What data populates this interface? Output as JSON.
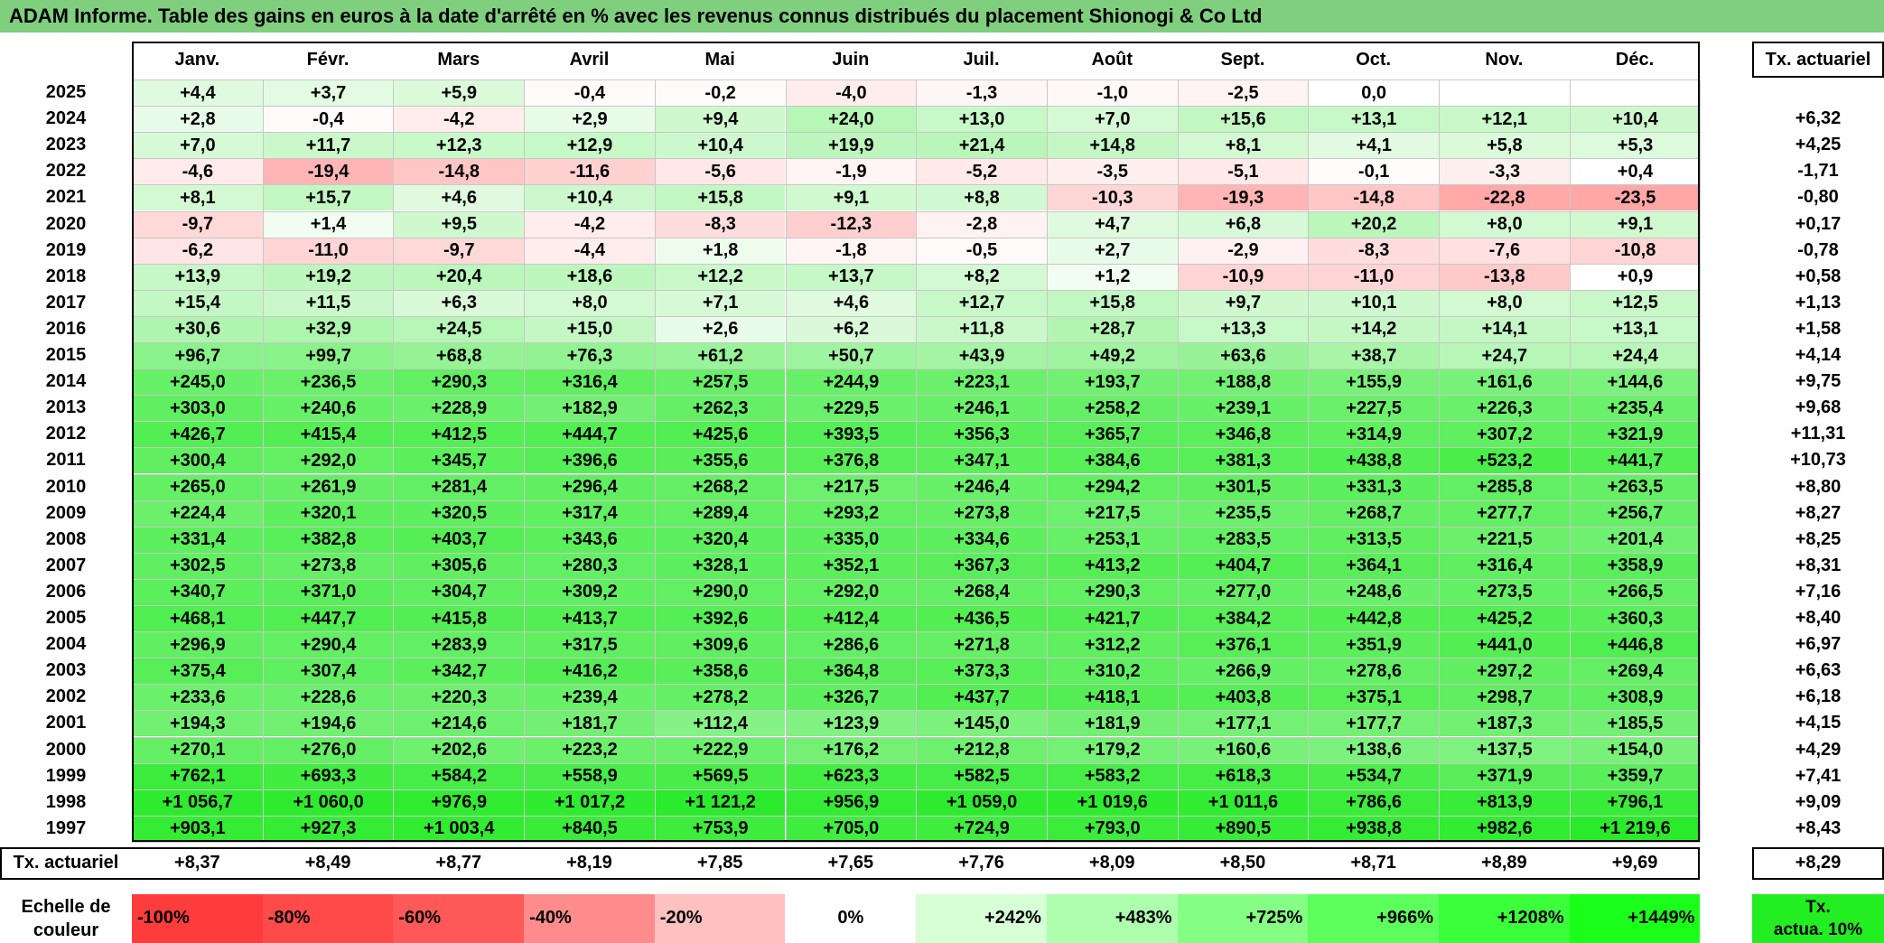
{
  "title": "ADAM Informe. Table des gains en euros à la date d'arrêté en % avec les revenus connus distribués du placement Shionogi & Co Ltd",
  "months": [
    "Janv.",
    "Févr.",
    "Mars",
    "Avril",
    "Mai",
    "Juin",
    "Juil.",
    "Août",
    "Sept.",
    "Oct.",
    "Nov.",
    "Déc."
  ],
  "rate_header": "Tx. actuariel",
  "rows": [
    {
      "year": "2025",
      "values": [
        "+4,4",
        "+3,7",
        "+5,9",
        "-0,4",
        "-0,2",
        "-4,0",
        "-1,3",
        "-1,0",
        "-2,5",
        "0,0",
        "",
        ""
      ],
      "rate": ""
    },
    {
      "year": "2024",
      "values": [
        "+2,8",
        "-0,4",
        "-4,2",
        "+2,9",
        "+9,4",
        "+24,0",
        "+13,0",
        "+7,0",
        "+15,6",
        "+13,1",
        "+12,1",
        "+10,4"
      ],
      "rate": "+6,32"
    },
    {
      "year": "2023",
      "values": [
        "+7,0",
        "+11,7",
        "+12,3",
        "+12,9",
        "+10,4",
        "+19,9",
        "+21,4",
        "+14,8",
        "+8,1",
        "+4,1",
        "+5,8",
        "+5,3"
      ],
      "rate": "+4,25"
    },
    {
      "year": "2022",
      "values": [
        "-4,6",
        "-19,4",
        "-14,8",
        "-11,6",
        "-5,6",
        "-1,9",
        "-5,2",
        "-3,5",
        "-5,1",
        "-0,1",
        "-3,3",
        "+0,4"
      ],
      "rate": "-1,71"
    },
    {
      "year": "2021",
      "values": [
        "+8,1",
        "+15,7",
        "+4,6",
        "+10,4",
        "+15,8",
        "+9,1",
        "+8,8",
        "-10,3",
        "-19,3",
        "-14,8",
        "-22,8",
        "-23,5"
      ],
      "rate": "-0,80"
    },
    {
      "year": "2020",
      "values": [
        "-9,7",
        "+1,4",
        "+9,5",
        "-4,2",
        "-8,3",
        "-12,3",
        "-2,8",
        "+4,7",
        "+6,8",
        "+20,2",
        "+8,0",
        "+9,1"
      ],
      "rate": "+0,17"
    },
    {
      "year": "2019",
      "values": [
        "-6,2",
        "-11,0",
        "-9,7",
        "-4,4",
        "+1,8",
        "-1,8",
        "-0,5",
        "+2,7",
        "-2,9",
        "-8,3",
        "-7,6",
        "-10,8"
      ],
      "rate": "-0,78"
    },
    {
      "year": "2018",
      "values": [
        "+13,9",
        "+19,2",
        "+20,4",
        "+18,6",
        "+12,2",
        "+13,7",
        "+8,2",
        "+1,2",
        "-10,9",
        "-11,0",
        "-13,8",
        "+0,9"
      ],
      "rate": "+0,58"
    },
    {
      "year": "2017",
      "values": [
        "+15,4",
        "+11,5",
        "+6,3",
        "+8,0",
        "+7,1",
        "+4,6",
        "+12,7",
        "+15,8",
        "+9,7",
        "+10,1",
        "+8,0",
        "+12,5"
      ],
      "rate": "+1,13"
    },
    {
      "year": "2016",
      "values": [
        "+30,6",
        "+32,9",
        "+24,5",
        "+15,0",
        "+2,6",
        "+6,2",
        "+11,8",
        "+28,7",
        "+13,3",
        "+14,2",
        "+14,1",
        "+13,1"
      ],
      "rate": "+1,58"
    },
    {
      "year": "2015",
      "values": [
        "+96,7",
        "+99,7",
        "+68,8",
        "+76,3",
        "+61,2",
        "+50,7",
        "+43,9",
        "+49,2",
        "+63,6",
        "+38,7",
        "+24,7",
        "+24,4"
      ],
      "rate": "+4,14"
    },
    {
      "year": "2014",
      "values": [
        "+245,0",
        "+236,5",
        "+290,3",
        "+316,4",
        "+257,5",
        "+244,9",
        "+223,1",
        "+193,7",
        "+188,8",
        "+155,9",
        "+161,6",
        "+144,6"
      ],
      "rate": "+9,75"
    },
    {
      "year": "2013",
      "values": [
        "+303,0",
        "+240,6",
        "+228,9",
        "+182,9",
        "+262,3",
        "+229,5",
        "+246,1",
        "+258,2",
        "+239,1",
        "+227,5",
        "+226,3",
        "+235,4"
      ],
      "rate": "+9,68"
    },
    {
      "year": "2012",
      "values": [
        "+426,7",
        "+415,4",
        "+412,5",
        "+444,7",
        "+425,6",
        "+393,5",
        "+356,3",
        "+365,7",
        "+346,8",
        "+314,9",
        "+307,2",
        "+321,9"
      ],
      "rate": "+11,31"
    },
    {
      "year": "2011",
      "values": [
        "+300,4",
        "+292,0",
        "+345,7",
        "+396,6",
        "+355,6",
        "+376,8",
        "+347,1",
        "+384,6",
        "+381,3",
        "+438,8",
        "+523,2",
        "+441,7"
      ],
      "rate": "+10,73"
    },
    {
      "year": "2010",
      "values": [
        "+265,0",
        "+261,9",
        "+281,4",
        "+296,4",
        "+268,2",
        "+217,5",
        "+246,4",
        "+294,2",
        "+301,5",
        "+331,3",
        "+285,8",
        "+263,5"
      ],
      "rate": "+8,80"
    },
    {
      "year": "2009",
      "values": [
        "+224,4",
        "+320,1",
        "+320,5",
        "+317,4",
        "+289,4",
        "+293,2",
        "+273,8",
        "+217,5",
        "+235,5",
        "+268,7",
        "+277,7",
        "+256,7"
      ],
      "rate": "+8,27"
    },
    {
      "year": "2008",
      "values": [
        "+331,4",
        "+382,8",
        "+403,7",
        "+343,6",
        "+320,4",
        "+335,0",
        "+334,6",
        "+253,1",
        "+283,5",
        "+313,5",
        "+221,5",
        "+201,4"
      ],
      "rate": "+8,25"
    },
    {
      "year": "2007",
      "values": [
        "+302,5",
        "+273,8",
        "+305,6",
        "+280,3",
        "+328,1",
        "+352,1",
        "+367,3",
        "+413,2",
        "+404,7",
        "+364,1",
        "+316,4",
        "+358,9"
      ],
      "rate": "+8,31"
    },
    {
      "year": "2006",
      "values": [
        "+340,7",
        "+371,0",
        "+304,7",
        "+309,2",
        "+290,0",
        "+292,0",
        "+268,4",
        "+290,3",
        "+277,0",
        "+248,6",
        "+273,5",
        "+266,5"
      ],
      "rate": "+7,16"
    },
    {
      "year": "2005",
      "values": [
        "+468,1",
        "+447,7",
        "+415,8",
        "+413,7",
        "+392,6",
        "+412,4",
        "+436,5",
        "+421,7",
        "+384,2",
        "+442,8",
        "+425,2",
        "+360,3"
      ],
      "rate": "+8,40"
    },
    {
      "year": "2004",
      "values": [
        "+296,9",
        "+290,4",
        "+283,9",
        "+317,5",
        "+309,6",
        "+286,6",
        "+271,8",
        "+312,2",
        "+376,1",
        "+351,9",
        "+441,0",
        "+446,8"
      ],
      "rate": "+6,97"
    },
    {
      "year": "2003",
      "values": [
        "+375,4",
        "+307,4",
        "+342,7",
        "+416,2",
        "+358,6",
        "+364,8",
        "+373,3",
        "+310,2",
        "+266,9",
        "+278,6",
        "+297,2",
        "+269,4"
      ],
      "rate": "+6,63"
    },
    {
      "year": "2002",
      "values": [
        "+233,6",
        "+228,6",
        "+220,3",
        "+239,4",
        "+278,2",
        "+326,7",
        "+437,7",
        "+418,1",
        "+403,8",
        "+375,1",
        "+298,7",
        "+308,9"
      ],
      "rate": "+6,18"
    },
    {
      "year": "2001",
      "values": [
        "+194,3",
        "+194,6",
        "+214,6",
        "+181,7",
        "+112,4",
        "+123,9",
        "+145,0",
        "+181,9",
        "+177,1",
        "+177,7",
        "+187,3",
        "+185,5"
      ],
      "rate": "+4,15"
    },
    {
      "year": "2000",
      "values": [
        "+270,1",
        "+276,0",
        "+202,6",
        "+223,2",
        "+222,9",
        "+176,2",
        "+212,8",
        "+179,2",
        "+160,6",
        "+138,6",
        "+137,5",
        "+154,0"
      ],
      "rate": "+4,29"
    },
    {
      "year": "1999",
      "values": [
        "+762,1",
        "+693,3",
        "+584,2",
        "+558,9",
        "+569,5",
        "+623,3",
        "+582,5",
        "+583,2",
        "+618,3",
        "+534,7",
        "+371,9",
        "+359,7"
      ],
      "rate": "+7,41"
    },
    {
      "year": "1998",
      "values": [
        "+1 056,7",
        "+1 060,0",
        "+976,9",
        "+1 017,2",
        "+1 121,2",
        "+956,9",
        "+1 059,0",
        "+1 019,6",
        "+1 011,6",
        "+786,6",
        "+813,9",
        "+796,1"
      ],
      "rate": "+9,09"
    },
    {
      "year": "1997",
      "values": [
        "+903,1",
        "+927,3",
        "+1 003,4",
        "+840,5",
        "+753,9",
        "+705,0",
        "+724,9",
        "+793,0",
        "+890,5",
        "+938,8",
        "+982,6",
        "+1 219,6"
      ],
      "rate": "+8,43"
    }
  ],
  "footer": {
    "label": "Tx. actuariel",
    "values": [
      "+8,37",
      "+8,49",
      "+8,77",
      "+8,19",
      "+7,85",
      "+7,65",
      "+7,76",
      "+8,09",
      "+8,50",
      "+8,71",
      "+8,89",
      "+9,69"
    ],
    "total": "+8,29"
  },
  "scale": {
    "label_line1": "Echelle de",
    "label_line2": "couleur",
    "steps": [
      {
        "text": "-100%",
        "color": "#ff3c3c"
      },
      {
        "text": "-80%",
        "color": "#ff4a4a"
      },
      {
        "text": "-60%",
        "color": "#ff5858"
      },
      {
        "text": "-40%",
        "color": "#ff8c8c"
      },
      {
        "text": "-20%",
        "color": "#ffc0c0"
      },
      {
        "text": "0%",
        "color": "#ffffff"
      },
      {
        "text": "+242%",
        "color": "#d6ffd6"
      },
      {
        "text": "+483%",
        "color": "#adffad"
      },
      {
        "text": "+725%",
        "color": "#84ff84"
      },
      {
        "text": "+966%",
        "color": "#5cff5c"
      },
      {
        "text": "+1208%",
        "color": "#3aff3a"
      },
      {
        "text": "+1449%",
        "color": "#1aff1a"
      }
    ],
    "rate_label_line1": "Tx.",
    "rate_label_line2": "actua. 10%",
    "rate_color": "#22ee22"
  }
}
